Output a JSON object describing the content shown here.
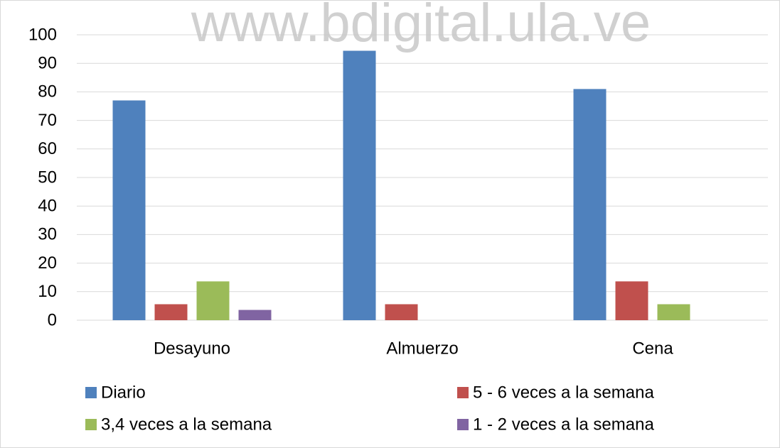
{
  "watermark": "www.bdigital.ula.ve",
  "chart_data": {
    "type": "bar",
    "categories": [
      "Desayuno",
      "Almuerzo",
      "Cena"
    ],
    "series": [
      {
        "name": "Diario",
        "color": "#4f81bd",
        "values": [
          77,
          94.4,
          81
        ]
      },
      {
        "name": "5 - 6 veces a la semana",
        "color": "#c0504d",
        "values": [
          5.6,
          5.6,
          13.6
        ]
      },
      {
        "name": "3,4 veces a la semana",
        "color": "#9bbb59",
        "values": [
          13.6,
          0,
          5.6
        ]
      },
      {
        "name": "1 - 2 veces a la semana",
        "color": "#8064a2",
        "values": [
          3.6,
          0,
          0
        ]
      }
    ],
    "ylim": [
      0,
      100
    ],
    "yticks": [
      0,
      10,
      20,
      30,
      40,
      50,
      60,
      70,
      80,
      90,
      100
    ],
    "grid": true
  }
}
